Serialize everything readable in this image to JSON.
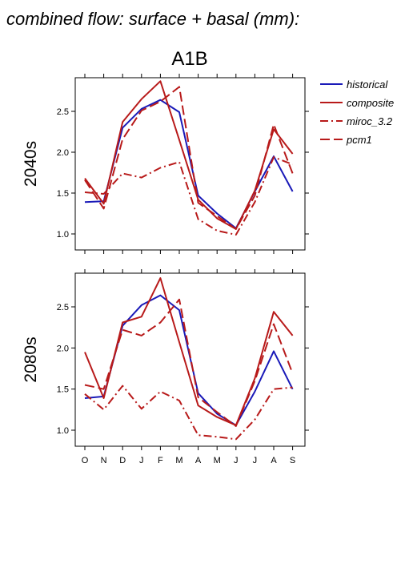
{
  "figure": {
    "title": "combined flow: surface + basal (mm):",
    "subtitle": "A1B"
  },
  "colors": {
    "historical": "#1a1ab8",
    "composite": "#b81a1a",
    "miroc_3.2": "#b81a1a",
    "pcm1": "#b81a1a"
  },
  "chart_data": [
    {
      "type": "line",
      "panel_label": "2040s",
      "categories": [
        "O",
        "N",
        "D",
        "J",
        "F",
        "M",
        "A",
        "M",
        "J",
        "J",
        "A",
        "S"
      ],
      "ylim": [
        0.9,
        2.9
      ],
      "yticks": [
        "1.0",
        "1.5",
        "2.0",
        "2.5"
      ],
      "series": [
        {
          "name": "historical",
          "values": [
            1.39,
            1.4,
            2.3,
            2.53,
            2.64,
            2.49,
            1.47,
            1.25,
            1.07,
            1.52,
            1.95,
            1.52
          ]
        },
        {
          "name": "composite",
          "values": [
            1.68,
            1.37,
            2.37,
            2.65,
            2.87,
            2.15,
            1.42,
            1.19,
            1.06,
            1.53,
            2.28,
            1.98
          ]
        },
        {
          "name": "miroc_3.2",
          "values": [
            1.51,
            1.49,
            1.74,
            1.69,
            1.81,
            1.88,
            1.18,
            1.04,
            0.99,
            1.39,
            1.94,
            1.85
          ]
        },
        {
          "name": "pcm1",
          "values": [
            1.66,
            1.31,
            2.16,
            2.51,
            2.62,
            2.8,
            1.38,
            1.22,
            1.06,
            1.47,
            2.34,
            1.74
          ]
        }
      ]
    },
    {
      "type": "line",
      "panel_label": "2080s",
      "categories": [
        "O",
        "N",
        "D",
        "J",
        "F",
        "M",
        "A",
        "M",
        "J",
        "J",
        "A",
        "S"
      ],
      "ylim": [
        0.85,
        2.9
      ],
      "yticks": [
        "1.0",
        "1.5",
        "2.0",
        "2.5"
      ],
      "series": [
        {
          "name": "historical",
          "values": [
            1.39,
            1.41,
            2.27,
            2.52,
            2.64,
            2.46,
            1.45,
            1.2,
            1.06,
            1.47,
            1.96,
            1.5
          ]
        },
        {
          "name": "composite",
          "values": [
            1.95,
            1.39,
            2.31,
            2.38,
            2.85,
            2.07,
            1.3,
            1.16,
            1.06,
            1.63,
            2.44,
            2.15
          ]
        },
        {
          "name": "miroc_3.2",
          "values": [
            1.44,
            1.25,
            1.54,
            1.26,
            1.47,
            1.36,
            0.94,
            0.92,
            0.89,
            1.13,
            1.5,
            1.52
          ]
        },
        {
          "name": "pcm1",
          "values": [
            1.55,
            1.5,
            2.22,
            2.15,
            2.31,
            2.59,
            1.4,
            1.22,
            1.05,
            1.6,
            2.29,
            1.69
          ]
        }
      ]
    }
  ],
  "legend": {
    "placement": "right",
    "entries": [
      {
        "name": "historical",
        "dash": "solid"
      },
      {
        "name": "composite",
        "dash": "solid"
      },
      {
        "name": "miroc_3.2",
        "dash": "dashdot"
      },
      {
        "name": "pcm1",
        "dash": "dashed"
      }
    ]
  },
  "x_tick_labels": [
    "O",
    "N",
    "D",
    "J",
    "F",
    "M",
    "A",
    "M",
    "J",
    "J",
    "A",
    "S"
  ]
}
